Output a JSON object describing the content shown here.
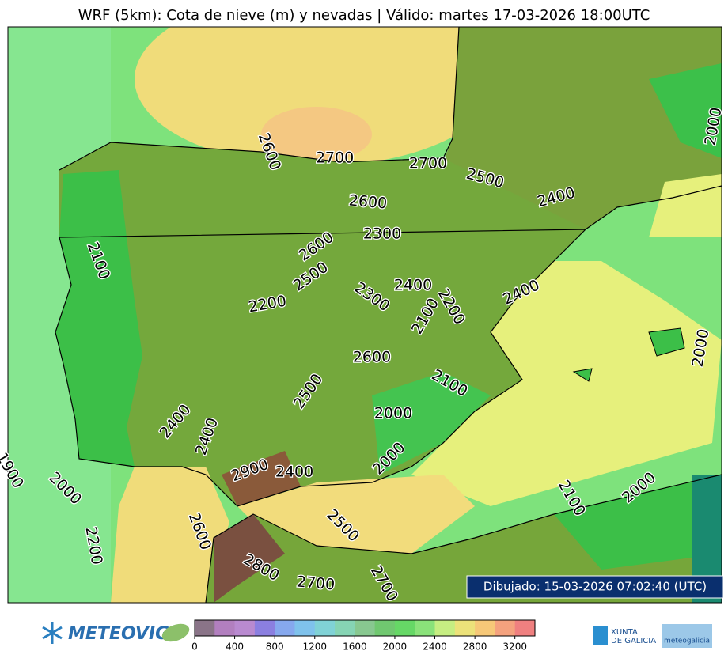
{
  "title": "WRF (5km): Cota de nieve (m) y nevadas | Válido: martes 17-03-2026 18:00UTC",
  "contour_labels": [
    2600,
    2700,
    2700,
    2500,
    2400,
    2600,
    2300,
    2600,
    2500,
    2200,
    2300,
    2400,
    2100,
    2200,
    2400,
    2600,
    2100,
    2500,
    2000,
    2400,
    2400,
    2000,
    2900,
    2400,
    2000,
    1900,
    2100,
    2000,
    2000,
    2000,
    2100,
    2200,
    2600,
    2500,
    2800,
    2700,
    2700
  ],
  "timestamp": "Dibujado: 15-03-2026 07:02:40 (UTC)",
  "colorbar": {
    "lim": [
      0,
      3400
    ],
    "ticks": [
      0,
      400,
      800,
      1200,
      1600,
      2000,
      2400,
      2800,
      3200
    ],
    "colors": [
      "#8a7488",
      "#b27fbf",
      "#b98ad0",
      "#8b7fe0",
      "#86a8ee",
      "#7fc2ec",
      "#80d2d6",
      "#86d4b4",
      "#88c890",
      "#70c870",
      "#66d866",
      "#8ae27a",
      "#c6ee82",
      "#ece27a",
      "#f6c878",
      "#f4a27e",
      "#ef8080"
    ]
  },
  "logos": {
    "left": "METEOVIGO",
    "right_1": "XUNTA",
    "right_2": "DE GALICIA",
    "right_3": "meteogalicia"
  }
}
